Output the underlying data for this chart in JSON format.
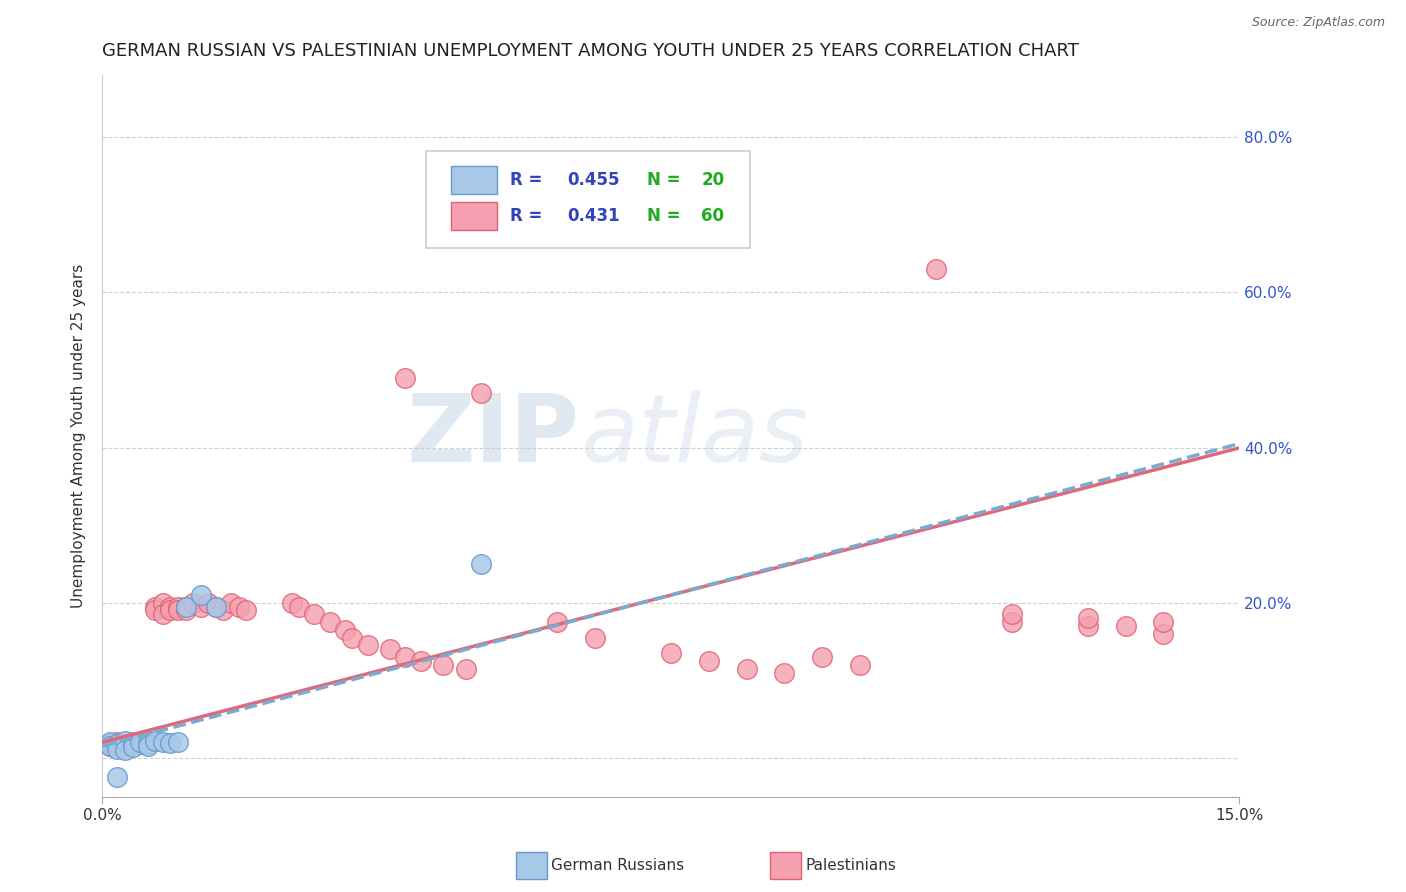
{
  "title": "GERMAN RUSSIAN VS PALESTINIAN UNEMPLOYMENT AMONG YOUTH UNDER 25 YEARS CORRELATION CHART",
  "source_text": "Source: ZipAtlas.com",
  "ylabel": "Unemployment Among Youth under 25 years",
  "xlim": [
    0.0,
    0.15
  ],
  "ylim": [
    -0.05,
    0.88
  ],
  "german_russian_scatter": [
    [
      0.001,
      0.02
    ],
    [
      0.001,
      0.015
    ],
    [
      0.002,
      0.018
    ],
    [
      0.002,
      0.012
    ],
    [
      0.003,
      0.022
    ],
    [
      0.003,
      0.01
    ],
    [
      0.004,
      0.018
    ],
    [
      0.004,
      0.014
    ],
    [
      0.005,
      0.02
    ],
    [
      0.006,
      0.018
    ],
    [
      0.006,
      0.015
    ],
    [
      0.007,
      0.022
    ],
    [
      0.008,
      0.02
    ],
    [
      0.009,
      0.019
    ],
    [
      0.01,
      0.02
    ],
    [
      0.011,
      0.195
    ],
    [
      0.013,
      0.21
    ],
    [
      0.015,
      0.195
    ],
    [
      0.05,
      0.25
    ],
    [
      0.002,
      -0.025
    ]
  ],
  "palestinian_scatter": [
    [
      0.001,
      0.018
    ],
    [
      0.001,
      0.015
    ],
    [
      0.002,
      0.02
    ],
    [
      0.002,
      0.018
    ],
    [
      0.003,
      0.018
    ],
    [
      0.003,
      0.015
    ],
    [
      0.004,
      0.02
    ],
    [
      0.004,
      0.018
    ],
    [
      0.005,
      0.02
    ],
    [
      0.005,
      0.018
    ],
    [
      0.006,
      0.022
    ],
    [
      0.006,
      0.018
    ],
    [
      0.007,
      0.195
    ],
    [
      0.007,
      0.19
    ],
    [
      0.008,
      0.2
    ],
    [
      0.008,
      0.185
    ],
    [
      0.009,
      0.195
    ],
    [
      0.009,
      0.19
    ],
    [
      0.01,
      0.195
    ],
    [
      0.01,
      0.19
    ],
    [
      0.011,
      0.195
    ],
    [
      0.011,
      0.19
    ],
    [
      0.012,
      0.2
    ],
    [
      0.013,
      0.195
    ],
    [
      0.014,
      0.2
    ],
    [
      0.015,
      0.195
    ],
    [
      0.016,
      0.19
    ],
    [
      0.017,
      0.2
    ],
    [
      0.018,
      0.195
    ],
    [
      0.019,
      0.19
    ],
    [
      0.025,
      0.2
    ],
    [
      0.026,
      0.195
    ],
    [
      0.028,
      0.185
    ],
    [
      0.03,
      0.175
    ],
    [
      0.032,
      0.165
    ],
    [
      0.033,
      0.155
    ],
    [
      0.035,
      0.145
    ],
    [
      0.038,
      0.14
    ],
    [
      0.04,
      0.13
    ],
    [
      0.042,
      0.125
    ],
    [
      0.045,
      0.12
    ],
    [
      0.048,
      0.115
    ],
    [
      0.04,
      0.49
    ],
    [
      0.05,
      0.47
    ],
    [
      0.06,
      0.175
    ],
    [
      0.065,
      0.155
    ],
    [
      0.075,
      0.135
    ],
    [
      0.08,
      0.125
    ],
    [
      0.085,
      0.115
    ],
    [
      0.09,
      0.11
    ],
    [
      0.095,
      0.13
    ],
    [
      0.1,
      0.12
    ],
    [
      0.11,
      0.63
    ],
    [
      0.12,
      0.175
    ],
    [
      0.13,
      0.17
    ],
    [
      0.135,
      0.17
    ],
    [
      0.14,
      0.16
    ],
    [
      0.12,
      0.185
    ],
    [
      0.13,
      0.18
    ],
    [
      0.14,
      0.175
    ]
  ],
  "german_russian_fill": "#a8c8e8",
  "german_russian_edge": "#6699cc",
  "palestinian_fill": "#f4a0b0",
  "palestinian_edge": "#e06070",
  "gr_line_color": "#7aaad0",
  "pa_line_color": "#e06878",
  "r_color": "#3344bb",
  "n_color": "#22aa22",
  "right_tick_color": "#3355cc",
  "title_fontsize": 13,
  "tick_fontsize": 11,
  "ylabel_fontsize": 11
}
